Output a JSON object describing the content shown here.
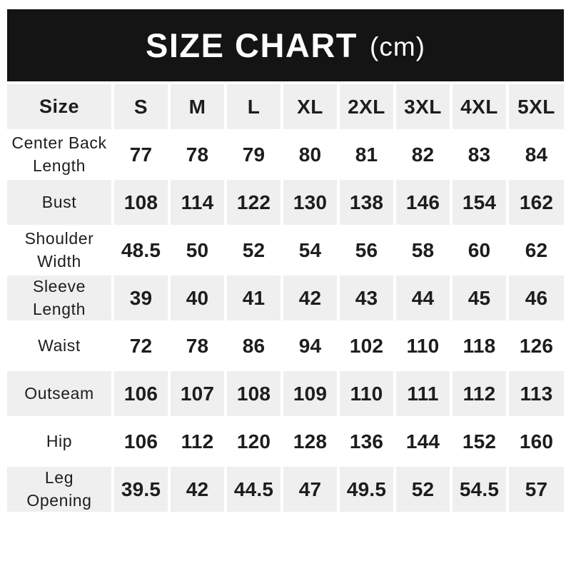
{
  "banner": {
    "title": "SIZE CHART",
    "unit": "(cm)"
  },
  "colors": {
    "banner_bg": "#141414",
    "banner_text": "#ffffff",
    "row_shade": "#efefef",
    "row_plain": "#ffffff",
    "text": "#1d1d1f"
  },
  "chart_data": {
    "type": "table",
    "title": "SIZE CHART (cm)",
    "columns": [
      "Size",
      "S",
      "M",
      "L",
      "XL",
      "2XL",
      "3XL",
      "4XL",
      "5XL"
    ],
    "rows": [
      [
        "Center Back Length",
        "77",
        "78",
        "79",
        "80",
        "81",
        "82",
        "83",
        "84"
      ],
      [
        "Bust",
        "108",
        "114",
        "122",
        "130",
        "138",
        "146",
        "154",
        "162"
      ],
      [
        "Shoulder Width",
        "48.5",
        "50",
        "52",
        "54",
        "56",
        "58",
        "60",
        "62"
      ],
      [
        "Sleeve Length",
        "39",
        "40",
        "41",
        "42",
        "43",
        "44",
        "45",
        "46"
      ],
      [
        "Waist",
        "72",
        "78",
        "86",
        "94",
        "102",
        "110",
        "118",
        "126"
      ],
      [
        "Outseam",
        "106",
        "107",
        "108",
        "109",
        "110",
        "111",
        "112",
        "113"
      ],
      [
        "Hip",
        "106",
        "112",
        "120",
        "128",
        "136",
        "144",
        "152",
        "160"
      ],
      [
        "Leg Opening",
        "39.5",
        "42",
        "44.5",
        "47",
        "49.5",
        "52",
        "54.5",
        "57"
      ]
    ]
  },
  "table": {
    "header": {
      "label": "Size",
      "sizes": [
        "S",
        "M",
        "L",
        "XL",
        "2XL",
        "3XL",
        "4XL",
        "5XL"
      ]
    },
    "rows": [
      {
        "label": "Center Back\nLength",
        "values": [
          "77",
          "78",
          "79",
          "80",
          "81",
          "82",
          "83",
          "84"
        ]
      },
      {
        "label": "Bust",
        "values": [
          "108",
          "114",
          "122",
          "130",
          "138",
          "146",
          "154",
          "162"
        ]
      },
      {
        "label": "Shoulder\nWidth",
        "values": [
          "48.5",
          "50",
          "52",
          "54",
          "56",
          "58",
          "60",
          "62"
        ]
      },
      {
        "label": "Sleeve\nLength",
        "values": [
          "39",
          "40",
          "41",
          "42",
          "43",
          "44",
          "45",
          "46"
        ]
      },
      {
        "label": "Waist",
        "values": [
          "72",
          "78",
          "86",
          "94",
          "102",
          "110",
          "118",
          "126"
        ]
      },
      {
        "label": "Outseam",
        "values": [
          "106",
          "107",
          "108",
          "109",
          "110",
          "111",
          "112",
          "113"
        ]
      },
      {
        "label": "Hip",
        "values": [
          "106",
          "112",
          "120",
          "128",
          "136",
          "144",
          "152",
          "160"
        ]
      },
      {
        "label": "Leg\nOpening",
        "values": [
          "39.5",
          "42",
          "44.5",
          "47",
          "49.5",
          "52",
          "54.5",
          "57"
        ]
      }
    ]
  }
}
